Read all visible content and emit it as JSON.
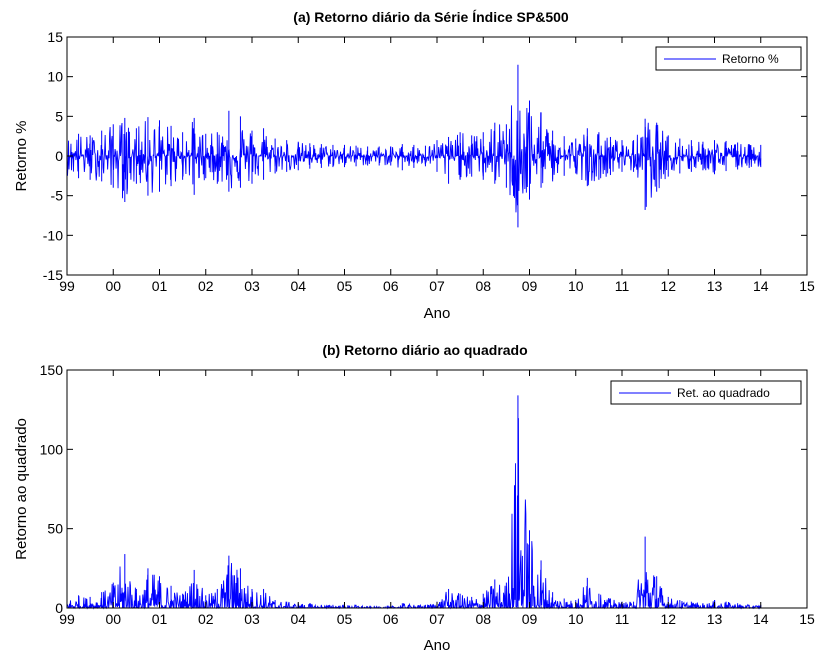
{
  "colors": {
    "series": "#0000ff",
    "axes": "#000000",
    "background": "#ffffff"
  },
  "chart_data": [
    {
      "type": "line",
      "title": "(a) Retorno diário da Série Índice SP&500",
      "xlabel": "Ano",
      "ylabel": "Retorno %",
      "xlim": [
        1999,
        2015
      ],
      "ylim": [
        -15,
        15
      ],
      "xticks": [
        1999,
        2000,
        2001,
        2002,
        2003,
        2004,
        2005,
        2006,
        2007,
        2008,
        2009,
        2010,
        2011,
        2012,
        2013,
        2014,
        2015
      ],
      "xtick_labels": [
        "99",
        "00",
        "01",
        "02",
        "03",
        "04",
        "05",
        "06",
        "07",
        "08",
        "09",
        "10",
        "11",
        "12",
        "13",
        "14",
        "15"
      ],
      "yticks": [
        -15,
        -10,
        -5,
        0,
        5,
        10,
        15
      ],
      "yticklabels": [
        "-15",
        "-10",
        "-5",
        "0",
        "5",
        "10",
        "15"
      ],
      "grid": false,
      "legend_position": "top-right",
      "series": [
        {
          "name": "Retorno %",
          "x": [
            1999.0,
            1999.25,
            1999.5,
            1999.75,
            2000.0,
            2000.25,
            2000.5,
            2000.75,
            2001.0,
            2001.25,
            2001.5,
            2001.75,
            2002.0,
            2002.25,
            2002.5,
            2002.75,
            2003.0,
            2003.25,
            2003.5,
            2003.75,
            2004.0,
            2004.25,
            2004.5,
            2004.75,
            2005.0,
            2005.25,
            2005.5,
            2005.75,
            2006.0,
            2006.25,
            2006.5,
            2006.75,
            2007.0,
            2007.25,
            2007.5,
            2007.75,
            2008.0,
            2008.25,
            2008.5,
            2008.75,
            2009.0,
            2009.25,
            2009.5,
            2009.75,
            2010.0,
            2010.25,
            2010.5,
            2010.75,
            2011.0,
            2011.25,
            2011.5,
            2011.75,
            2012.0,
            2012.25,
            2012.5,
            2012.75,
            2013.0,
            2013.25,
            2013.5,
            2013.75,
            2014.0
          ],
          "values_high": [
            2.5,
            2.8,
            2.6,
            3.2,
            4.0,
            4.8,
            3.5,
            4.9,
            4.5,
            3.8,
            3.0,
            4.8,
            2.8,
            3.0,
            5.7,
            5.0,
            3.2,
            3.5,
            2.2,
            2.0,
            1.8,
            1.6,
            1.5,
            1.4,
            1.4,
            1.3,
            1.2,
            1.2,
            1.2,
            1.5,
            1.4,
            1.3,
            2.0,
            2.4,
            3.0,
            2.6,
            3.0,
            4.2,
            4.0,
            11.5,
            7.0,
            5.5,
            3.2,
            2.5,
            2.2,
            3.5,
            3.0,
            2.4,
            2.0,
            2.0,
            4.7,
            4.2,
            2.6,
            2.2,
            2.0,
            1.8,
            2.0,
            1.9,
            1.7,
            1.5,
            1.4
          ],
          "values_low": [
            -2.5,
            -2.8,
            -3.0,
            -3.2,
            -4.0,
            -5.8,
            -3.5,
            -5.0,
            -4.5,
            -3.8,
            -3.0,
            -4.9,
            -2.8,
            -3.5,
            -4.5,
            -4.0,
            -3.5,
            -3.0,
            -2.2,
            -2.0,
            -1.8,
            -1.6,
            -1.5,
            -1.4,
            -1.4,
            -1.3,
            -1.2,
            -1.2,
            -1.2,
            -1.8,
            -1.5,
            -1.3,
            -2.0,
            -3.5,
            -3.0,
            -2.6,
            -3.0,
            -3.5,
            -4.0,
            -9.0,
            -5.5,
            -4.0,
            -3.2,
            -2.5,
            -2.2,
            -3.8,
            -3.0,
            -2.4,
            -2.0,
            -2.0,
            -6.8,
            -4.5,
            -2.6,
            -2.2,
            -2.0,
            -1.8,
            -2.3,
            -1.9,
            -1.7,
            -1.5,
            -1.4
          ]
        }
      ]
    },
    {
      "type": "line",
      "title": "(b) Retorno diário ao quadrado",
      "xlabel": "Ano",
      "ylabel": "Retorno ao quadrado",
      "xlim": [
        1999,
        2015
      ],
      "ylim": [
        0,
        150
      ],
      "xticks": [
        1999,
        2000,
        2001,
        2002,
        2003,
        2004,
        2005,
        2006,
        2007,
        2008,
        2009,
        2010,
        2011,
        2012,
        2013,
        2014,
        2015
      ],
      "xtick_labels": [
        "99",
        "00",
        "01",
        "02",
        "03",
        "04",
        "05",
        "06",
        "07",
        "08",
        "09",
        "10",
        "11",
        "12",
        "13",
        "14",
        "15"
      ],
      "yticks": [
        0,
        50,
        100,
        150
      ],
      "yticklabels": [
        "0",
        "50",
        "100",
        "150"
      ],
      "grid": false,
      "legend_position": "top-right",
      "series": [
        {
          "name": "Ret. ao quadrado",
          "x": [
            1999.0,
            1999.25,
            1999.5,
            1999.75,
            2000.0,
            2000.25,
            2000.5,
            2000.75,
            2001.0,
            2001.25,
            2001.5,
            2001.75,
            2002.0,
            2002.25,
            2002.5,
            2002.75,
            2003.0,
            2003.25,
            2003.5,
            2003.75,
            2004.0,
            2004.25,
            2004.5,
            2004.75,
            2005.0,
            2005.25,
            2005.5,
            2005.75,
            2006.0,
            2006.25,
            2006.5,
            2006.75,
            2007.0,
            2007.25,
            2007.5,
            2007.75,
            2008.0,
            2008.25,
            2008.5,
            2008.75,
            2009.0,
            2009.25,
            2009.5,
            2009.75,
            2010.0,
            2010.25,
            2010.5,
            2010.75,
            2011.0,
            2011.25,
            2011.5,
            2011.75,
            2012.0,
            2012.25,
            2012.5,
            2012.75,
            2013.0,
            2013.25,
            2013.5,
            2013.75,
            2014.0
          ],
          "values": [
            6,
            8,
            7,
            10,
            16,
            34,
            12,
            25,
            20,
            14,
            9,
            24,
            8,
            12,
            33,
            25,
            12,
            12,
            5,
            4,
            3,
            3,
            2,
            2,
            2,
            2,
            1,
            1,
            1,
            3,
            2,
            2,
            4,
            12,
            9,
            7,
            9,
            18,
            16,
            134,
            49,
            30,
            10,
            6,
            5,
            19,
            9,
            6,
            4,
            4,
            45,
            20,
            7,
            5,
            4,
            3,
            5,
            4,
            3,
            2,
            2
          ]
        }
      ]
    }
  ]
}
